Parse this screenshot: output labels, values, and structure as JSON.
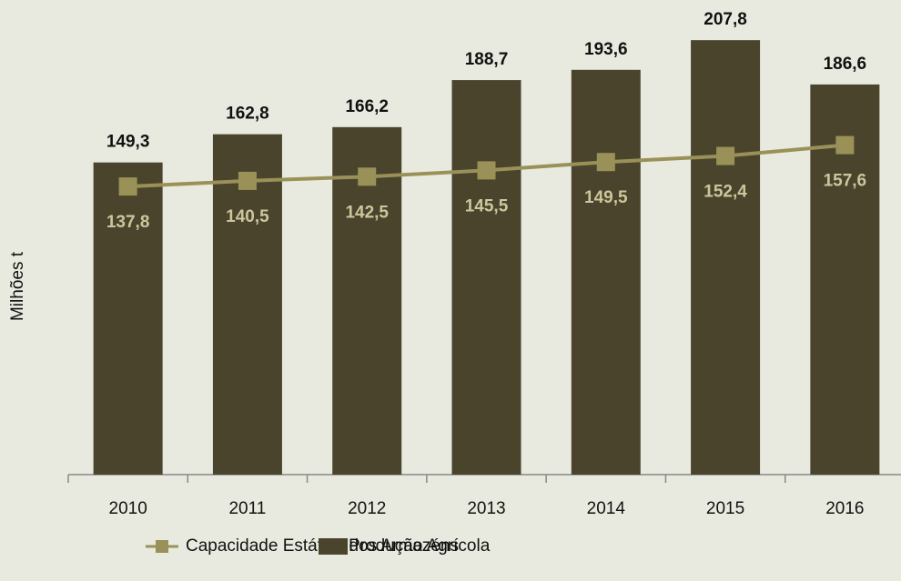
{
  "chart_data": {
    "type": "bar",
    "y_axis_label": "Milhões t",
    "categories": [
      "2010",
      "2011",
      "2012",
      "2013",
      "2014",
      "2015",
      "2016"
    ],
    "ylim": [
      0,
      227
    ],
    "series": [
      {
        "name": "Capacidade Estática dos Armazéns",
        "type": "line",
        "color": "#9a9158",
        "label_color": "#cdc69c",
        "values": [
          137.8,
          140.5,
          142.5,
          145.5,
          149.5,
          152.4,
          157.6
        ],
        "value_labels": [
          "137,8",
          "140,5",
          "142,5",
          "145,5",
          "149,5",
          "152,4",
          "157,6"
        ]
      },
      {
        "name": "Produção Agrícola",
        "type": "bar",
        "color": "#4a442d",
        "label_color": "#111111",
        "values": [
          149.3,
          162.8,
          166.2,
          188.7,
          193.6,
          207.8,
          186.6
        ],
        "value_labels": [
          "149,3",
          "162,8",
          "166,2",
          "188,7",
          "193,6",
          "207,8",
          "186,6"
        ]
      }
    ]
  }
}
